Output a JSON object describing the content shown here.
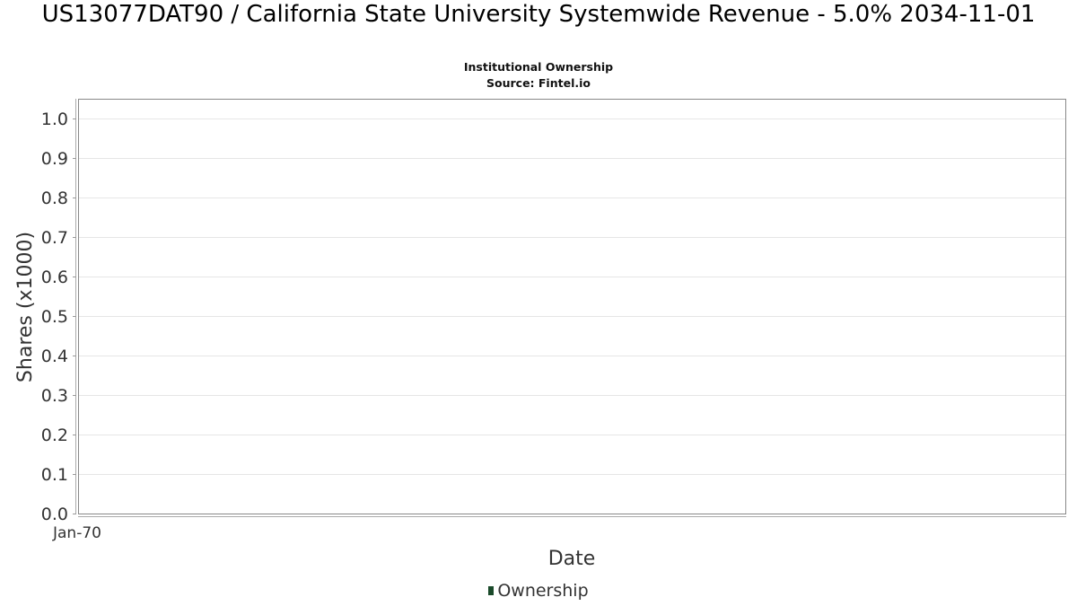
{
  "chart_data": {
    "type": "line",
    "title": "US13077DAT90 / California State University Systemwide Revenue - 5.0% 2034-11-01",
    "subtitle": [
      "Institutional Ownership",
      "Source: Fintel.io"
    ],
    "xlabel": "Date",
    "ylabel": "Shares (x1000)",
    "ylim": [
      0.0,
      1.0
    ],
    "yticks": [
      "0.0",
      "0.1",
      "0.2",
      "0.3",
      "0.4",
      "0.5",
      "0.6",
      "0.7",
      "0.8",
      "0.9",
      "1.0"
    ],
    "xticks": [
      "Jan-70"
    ],
    "grid": true,
    "legend_placement": "bottom-center",
    "series": [
      {
        "name": "Ownership",
        "color": "#1a4a2a",
        "x": [],
        "y": []
      }
    ]
  }
}
